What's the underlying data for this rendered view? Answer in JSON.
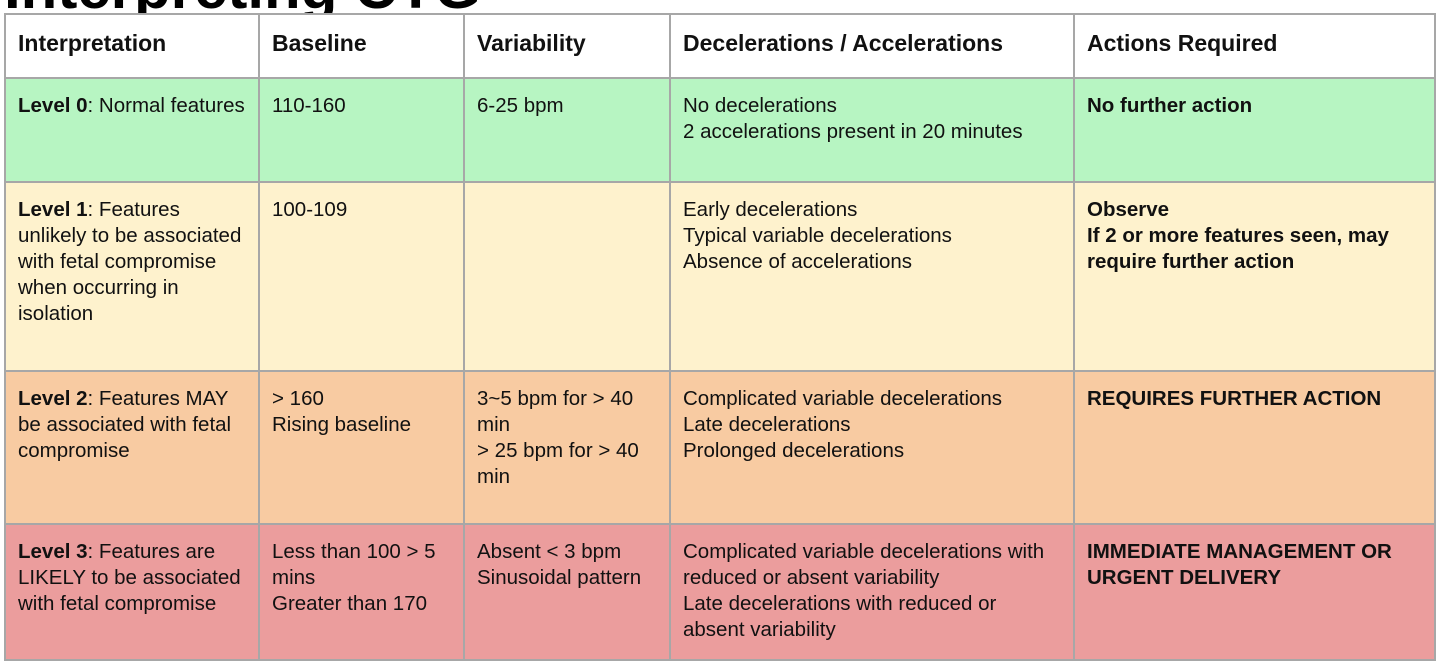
{
  "heading": "Interpreting CTG",
  "columns": [
    "Interpretation",
    "Baseline",
    "Variability",
    "Decelerations / Accelerations",
    "Actions Required"
  ],
  "rows": [
    {
      "level": "Level 0",
      "description": ": Normal features",
      "baseline": [
        "110-160"
      ],
      "variability": [
        "6-25 bpm"
      ],
      "decelerations": [
        "No decelerations",
        "2 accelerations present in 20 minutes"
      ],
      "actions": [
        "No further action"
      ]
    },
    {
      "level": "Level 1",
      "description": ": Features unlikely to be associated with fetal compromise when occurring in isolation",
      "baseline": [
        "100-109"
      ],
      "variability": [],
      "decelerations": [
        "Early decelerations",
        "Typical variable decelerations",
        "Absence of accelerations"
      ],
      "actions": [
        "Observe",
        "If 2 or more features seen, may require further action"
      ]
    },
    {
      "level": "Level 2",
      "description": ": Features MAY be associated with fetal compromise",
      "baseline": [
        "> 160",
        "Rising baseline"
      ],
      "variability": [
        "3~5 bpm for > 40 min",
        "> 25 bpm for > 40 min"
      ],
      "decelerations": [
        "Complicated variable decelerations",
        "Late decelerations",
        "Prolonged decelerations"
      ],
      "actions": [
        "REQUIRES FURTHER ACTION"
      ]
    },
    {
      "level": "Level 3",
      "description": ": Features are LIKELY to be associated with fetal compromise",
      "baseline": [
        "Less than 100 > 5 mins",
        "Greater than 170"
      ],
      "variability": [
        "Absent < 3 bpm",
        "Sinusoidal pattern"
      ],
      "decelerations": [
        "Complicated variable decelerations with reduced or absent variability",
        "Late decelerations with reduced or absent variability"
      ],
      "actions": [
        "IMMEDIATE MANAGEMENT OR URGENT DELIVERY"
      ]
    }
  ]
}
